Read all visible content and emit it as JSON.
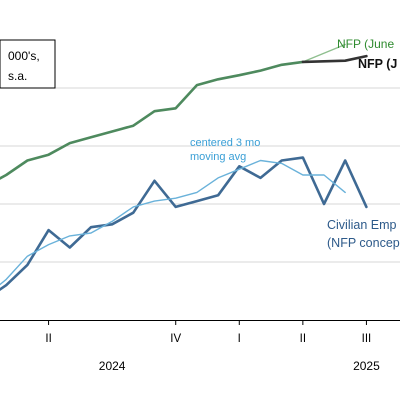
{
  "chart_data": {
    "type": "line",
    "unit_label_line1": "000's,",
    "unit_label_line2": "s.a.",
    "x_tick_labels": [
      {
        "x": 4,
        "label": "II"
      },
      {
        "x": 10,
        "label": "IV"
      },
      {
        "x": 13,
        "label": "I"
      },
      {
        "x": 16,
        "label": "II"
      },
      {
        "x": 19,
        "label": "III"
      }
    ],
    "year_labels": [
      {
        "x": 7,
        "label": "2024"
      },
      {
        "x": 19,
        "label": "2025"
      }
    ],
    "xlim": [
      1,
      22
    ],
    "ylim": [
      0,
      5
    ],
    "grid": true,
    "series": [
      {
        "name": "NFP (June",
        "color": "#8fbf8f",
        "style": "thin",
        "x": [
          16,
          18
        ],
        "y": [
          4.45,
          4.75
        ]
      },
      {
        "name": "NFP (J",
        "color": "#333333",
        "style": "thick",
        "x": [
          16,
          17,
          18,
          19
        ],
        "y": [
          4.45,
          4.46,
          4.47,
          4.55
        ]
      },
      {
        "name": "",
        "color": "#4e8a5e",
        "style": "thick",
        "x": [
          1,
          2,
          3,
          4,
          5,
          6,
          7,
          8,
          9,
          10,
          11,
          12,
          13,
          14,
          15,
          16
        ],
        "y": [
          2.3,
          2.5,
          2.75,
          2.85,
          3.05,
          3.15,
          3.25,
          3.35,
          3.6,
          3.65,
          4.05,
          4.15,
          4.22,
          4.3,
          4.4,
          4.45
        ]
      },
      {
        "name": "Civilian Emp",
        "color": "#3f6a94",
        "style": "thick",
        "x": [
          1,
          2,
          3,
          4,
          5,
          6,
          7,
          8,
          9,
          10,
          11,
          12,
          13,
          14,
          15,
          16,
          17,
          18,
          19
        ],
        "y": [
          0.35,
          0.6,
          0.95,
          1.55,
          1.25,
          1.6,
          1.65,
          1.85,
          2.4,
          1.95,
          2.05,
          2.15,
          2.65,
          2.45,
          2.75,
          2.8,
          2.0,
          2.75,
          1.95
        ]
      },
      {
        "name": "centered 3 mo moving avg",
        "color": "#6ab2da",
        "style": "thin",
        "x": [
          1,
          2,
          3,
          4,
          5,
          6,
          7,
          8,
          9,
          10,
          11,
          12,
          13,
          14,
          15,
          16,
          17,
          18
        ],
        "y": [
          0.4,
          0.7,
          1.1,
          1.3,
          1.45,
          1.5,
          1.7,
          1.95,
          2.05,
          2.1,
          2.2,
          2.45,
          2.6,
          2.75,
          2.7,
          2.5,
          2.5,
          2.2
        ]
      }
    ],
    "annotations": {
      "ma_line1": "centered 3 mo",
      "ma_line2": "moving avg",
      "ce_line1": "Civilian Emp",
      "ce_line2": "(NFP concep"
    }
  }
}
